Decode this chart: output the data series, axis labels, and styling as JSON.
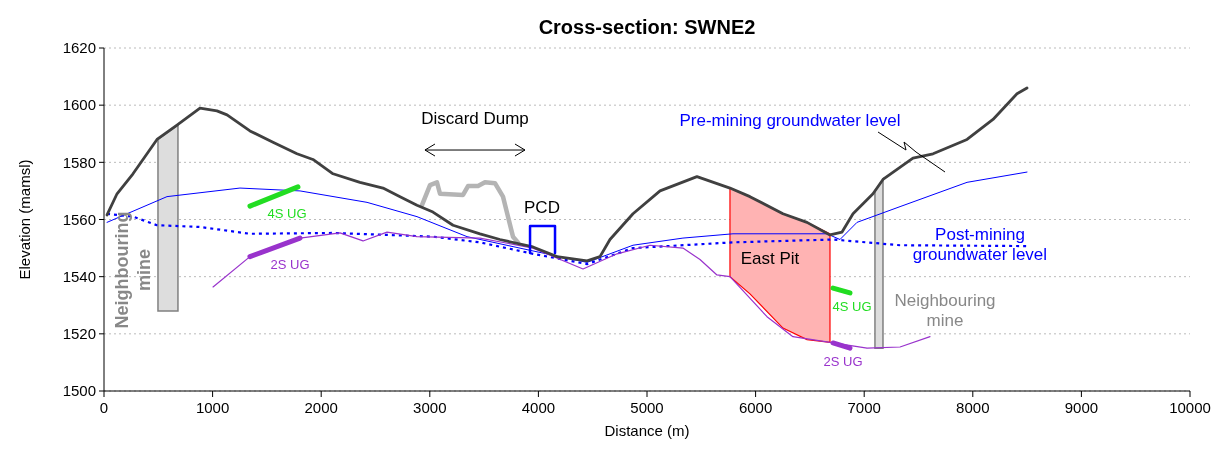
{
  "chart_data": {
    "type": "line",
    "title": "Cross-section: SWNE2",
    "xlabel": "Distance (m)",
    "ylabel": "Elevation (mamsl)",
    "xlim": [
      0,
      10000
    ],
    "xticks": [
      0,
      1000,
      2000,
      3000,
      4000,
      5000,
      6000,
      7000,
      8000,
      9000,
      10000
    ],
    "ylim": [
      1500,
      1620
    ],
    "yticks": [
      1500,
      1520,
      1540,
      1560,
      1580,
      1600,
      1620
    ],
    "grid": "y",
    "series": [
      {
        "color": "#dddddd",
        "x": [
          497,
          681
        ],
        "values": [
          null,
          null
        ],
        "upper": [
          1588,
          1593
        ],
        "lower": [
          1528,
          1528
        ]
      },
      {
        "color": "#dddddd",
        "x": [
          7099,
          7173
        ],
        "values": [
          null,
          null
        ],
        "upper": [
          1570,
          1574
        ],
        "lower": [
          1515,
          1515
        ]
      },
      {
        "color": "#ffb3b3",
        "x": [
          5764,
          5948,
          6252,
          6473,
          6685
        ],
        "values": [
          null,
          null,
          null,
          null,
          null
        ],
        "upper": [
          1571,
          1568,
          1562,
          1559,
          1555
        ],
        "lower": [
          1540,
          1534,
          1522,
          1518,
          1517
        ]
      },
      {
        "color": "#0000ff",
        "x": [
          28,
          580,
          1252,
          1805,
          2422,
          2882,
          3343,
          3950,
          4448,
          4871,
          5331,
          5792,
          6409,
          6657,
          6777,
          6934,
          7330,
          7947,
          8499
        ],
        "values": [
          1559,
          1568,
          1571,
          1570,
          1566,
          1561,
          1554,
          1549,
          1545,
          1551,
          1553.5,
          1555,
          1555,
          1555,
          1553,
          1559,
          1564.5,
          1573,
          1576.6
        ]
      },
      {
        "color": "#0000ff",
        "line_style": "dotted",
        "x": [
          28,
          267,
          488,
          884,
          1344,
          2109,
          3029,
          3462,
          3950,
          4448,
          4871,
          5792,
          6713,
          7330,
          8499
        ],
        "values": [
          1562,
          1561,
          1558,
          1557.4,
          1555,
          1555.3,
          1554,
          1552,
          1548,
          1544.4,
          1550,
          1552,
          1553,
          1551,
          1550.7
        ]
      },
      {
        "color": "#9933cc",
        "x": [
          1004,
          1344,
          1805,
          2173,
          2385,
          2606,
          2882,
          3462,
          3950,
          4411,
          4724,
          5028,
          5331,
          5488,
          5644,
          5764,
          6105,
          6344,
          6685,
          7026,
          7330,
          7606
        ],
        "values": [
          1536.4,
          1547,
          1553.5,
          1555.3,
          1552.5,
          1555.6,
          1554,
          1553.5,
          1550,
          1542.7,
          1548,
          1551,
          1550,
          1546,
          1540.6,
          1540,
          1526,
          1519,
          1517,
          1515,
          1515.4,
          1519
        ]
      },
      {
        "color": "#b4b4b4",
        "x": [
          2928,
          3002,
          3066,
          3094,
          3306,
          3352,
          3444,
          3508,
          3600,
          3674,
          3766,
          3812
        ],
        "values": [
          1565,
          1572,
          1573,
          1569,
          1568.6,
          1571.7,
          1571.7,
          1573,
          1572.7,
          1568,
          1554,
          1552
        ]
      },
      {
        "color": "#404040",
        "x": [
          28,
          120,
          267,
          488,
          672,
          884,
          1040,
          1133,
          1344,
          1556,
          1777,
          1924,
          2109,
          2357,
          2569,
          2726,
          2882,
          3029,
          3214,
          3462,
          3646,
          3950,
          4171,
          4448,
          4567,
          4659,
          4871,
          5120,
          5460,
          5764,
          5948,
          6252,
          6473,
          6685,
          6796,
          6897,
          7081,
          7173,
          7449,
          7634,
          7947,
          8186,
          8407,
          8499
        ],
        "values": [
          1561.6,
          1569,
          1576,
          1588,
          1593,
          1599,
          1598,
          1596.6,
          1591,
          1587,
          1583,
          1581,
          1576,
          1573,
          1571,
          1568,
          1565,
          1562.6,
          1558,
          1555,
          1553,
          1550.4,
          1547,
          1545.5,
          1547,
          1553,
          1562,
          1570,
          1575,
          1571,
          1568,
          1562,
          1559,
          1554.6,
          1555.6,
          1562,
          1569,
          1574,
          1581.5,
          1583,
          1588,
          1595,
          1604,
          1606
        ]
      },
      {
        "color": "#0000ff",
        "x": [
          3923,
          3923,
          4153,
          4153
        ],
        "values": [
          1548.3,
          1557.7,
          1557.7,
          1548.3
        ]
      },
      {
        "color": "#22dd22",
        "x": [
          1344,
          1786,
          4000,
          6713,
          6869
        ],
        "values": [
          1564.7,
          1571.4,
          null,
          1536,
          1534.3
        ]
      },
      {
        "color": "#9933cc",
        "x": [
          1344,
          1805,
          4000,
          6713,
          6869
        ],
        "values": [
          1547,
          1553.5,
          null,
          1516.8,
          1515
        ]
      }
    ],
    "annotations": [
      "Discard Dump",
      "PCD",
      "Pre-mining groundwater level",
      "Post-mining groundwater level",
      "East Pit",
      "4S UG",
      "2S UG",
      "4S UG",
      "2S UG",
      "Neighbouring mine",
      "Neighbouring mine"
    ]
  }
}
